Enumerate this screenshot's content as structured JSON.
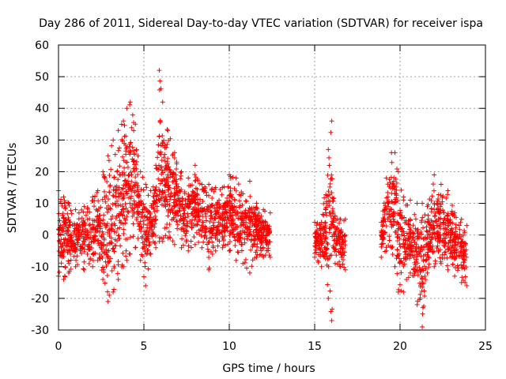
{
  "chart_data": {
    "type": "scatter",
    "title": "Day 286 of 2011, Sidereal Day-to-day VTEC variation (SDTVAR) for receiver ispa",
    "xlabel": "GPS time / hours",
    "ylabel": "SDTVAR / TECUs",
    "xlim": [
      0,
      25
    ],
    "ylim": [
      -30,
      60
    ],
    "xticks": [
      0,
      5,
      10,
      15,
      20,
      25
    ],
    "xtick_labels": [
      "0",
      "5",
      "10",
      "15",
      "20",
      "25"
    ],
    "yticks": [
      -30,
      -20,
      -10,
      0,
      10,
      20,
      30,
      40,
      50,
      60
    ],
    "ytick_labels": [
      "-30",
      "-20",
      "-10",
      "0",
      "10",
      "20",
      "30",
      "40",
      "50",
      "60"
    ],
    "grid": true,
    "marker": "+",
    "color": "#ff0000",
    "series": [
      {
        "name": "SDTVAR",
        "segments": [
          {
            "t_start": 0.0,
            "t_end": 12.4,
            "envelope": [
              [
                0.0,
                -13,
                14
              ],
              [
                0.3,
                -14,
                12
              ],
              [
                0.6,
                -12,
                10
              ],
              [
                1.0,
                -10,
                8
              ],
              [
                1.5,
                -11,
                9
              ],
              [
                2.0,
                -10,
                12
              ],
              [
                2.3,
                -8,
                14
              ],
              [
                2.6,
                -14,
                20
              ],
              [
                2.9,
                -21,
                25
              ],
              [
                3.2,
                -18,
                30
              ],
              [
                3.5,
                -14,
                33
              ],
              [
                3.8,
                -10,
                36
              ],
              [
                4.0,
                -8,
                40
              ],
              [
                4.2,
                -6,
                42
              ],
              [
                4.5,
                -4,
                35
              ],
              [
                4.8,
                -8,
                20
              ],
              [
                5.1,
                -16,
                16
              ],
              [
                5.4,
                -6,
                14
              ],
              [
                5.7,
                -4,
                22
              ],
              [
                5.9,
                -2,
                52
              ],
              [
                6.1,
                -2,
                42
              ],
              [
                6.4,
                -1,
                33
              ],
              [
                6.8,
                -3,
                26
              ],
              [
                7.2,
                -4,
                20
              ],
              [
                7.6,
                -5,
                18
              ],
              [
                8.0,
                -3,
                22
              ],
              [
                8.4,
                -4,
                16
              ],
              [
                8.8,
                -11,
                16
              ],
              [
                9.2,
                -5,
                15
              ],
              [
                9.6,
                -4,
                15
              ],
              [
                10.0,
                -5,
                19
              ],
              [
                10.4,
                -8,
                18
              ],
              [
                10.8,
                -9,
                13
              ],
              [
                11.2,
                -12,
                17
              ],
              [
                11.6,
                -7,
                10
              ],
              [
                12.0,
                -7,
                8
              ],
              [
                12.4,
                -7,
                7
              ]
            ]
          },
          {
            "t_start": 15.0,
            "t_end": 16.8,
            "envelope": [
              [
                15.0,
                -7,
                4
              ],
              [
                15.4,
                -10,
                4
              ],
              [
                15.8,
                -20,
                27
              ],
              [
                16.0,
                -27,
                36
              ],
              [
                16.2,
                -9,
                6
              ],
              [
                16.5,
                -10,
                5
              ],
              [
                16.8,
                -11,
                5
              ]
            ]
          },
          {
            "t_start": 18.9,
            "t_end": 23.9,
            "envelope": [
              [
                18.9,
                -7,
                4
              ],
              [
                19.2,
                -5,
                18
              ],
              [
                19.5,
                -4,
                26
              ],
              [
                19.7,
                -10,
                26
              ],
              [
                19.9,
                -18,
                20
              ],
              [
                20.2,
                -18,
                12
              ],
              [
                20.6,
                -12,
                11
              ],
              [
                21.0,
                -22,
                10
              ],
              [
                21.3,
                -29,
                10
              ],
              [
                21.6,
                -12,
                9
              ],
              [
                22.0,
                -10,
                19
              ],
              [
                22.4,
                -9,
                16
              ],
              [
                22.8,
                -11,
                14
              ],
              [
                23.2,
                -13,
                7
              ],
              [
                23.6,
                -15,
                5
              ],
              [
                23.9,
                -16,
                3
              ]
            ]
          }
        ]
      }
    ]
  }
}
